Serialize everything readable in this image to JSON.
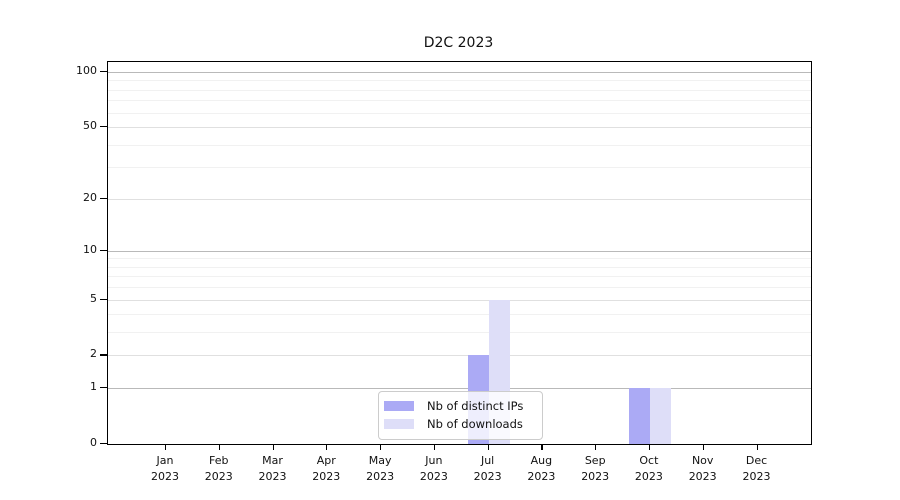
{
  "chart_data": {
    "type": "bar",
    "title": "D2C 2023",
    "months": [
      "Jan",
      "Feb",
      "Mar",
      "Apr",
      "May",
      "Jun",
      "Jul",
      "Aug",
      "Sep",
      "Oct",
      "Nov",
      "Dec"
    ],
    "x_tick_year": "2023",
    "series": [
      {
        "name": "Nb of distinct IPs",
        "color": "#abaaf5",
        "values": [
          0,
          0,
          0,
          0,
          0,
          0,
          2,
          0,
          0,
          1,
          0,
          0
        ]
      },
      {
        "name": "Nb of downloads",
        "color": "#dedef8",
        "values": [
          0,
          0,
          0,
          0,
          0,
          0,
          5,
          0,
          0,
          1,
          0,
          0
        ]
      }
    ],
    "y_axis": {
      "scale": "log1p",
      "tick_labels": [
        0,
        1,
        2,
        5,
        10,
        20,
        50,
        100
      ],
      "emphasized_gridlines": [
        1,
        10,
        100
      ],
      "secondary_gridlines": [
        2,
        5,
        20,
        50
      ],
      "minor_gridlines": [
        3,
        4,
        6,
        7,
        8,
        9,
        30,
        40,
        60,
        70,
        80,
        90
      ],
      "ylim": [
        0,
        112
      ]
    },
    "legend": {
      "position": "lower-center",
      "entries": [
        "Nb of distinct IPs",
        "Nb of downloads"
      ]
    },
    "grid": true
  },
  "colors": {
    "background": "#ffffff",
    "axis": "#000000",
    "text": "#111111",
    "grid_emphasized": "#b9b9b9",
    "grid_secondary": "#e0e0e0",
    "grid_minor": "#f1f1f1",
    "legend_border": "#cccccc"
  }
}
